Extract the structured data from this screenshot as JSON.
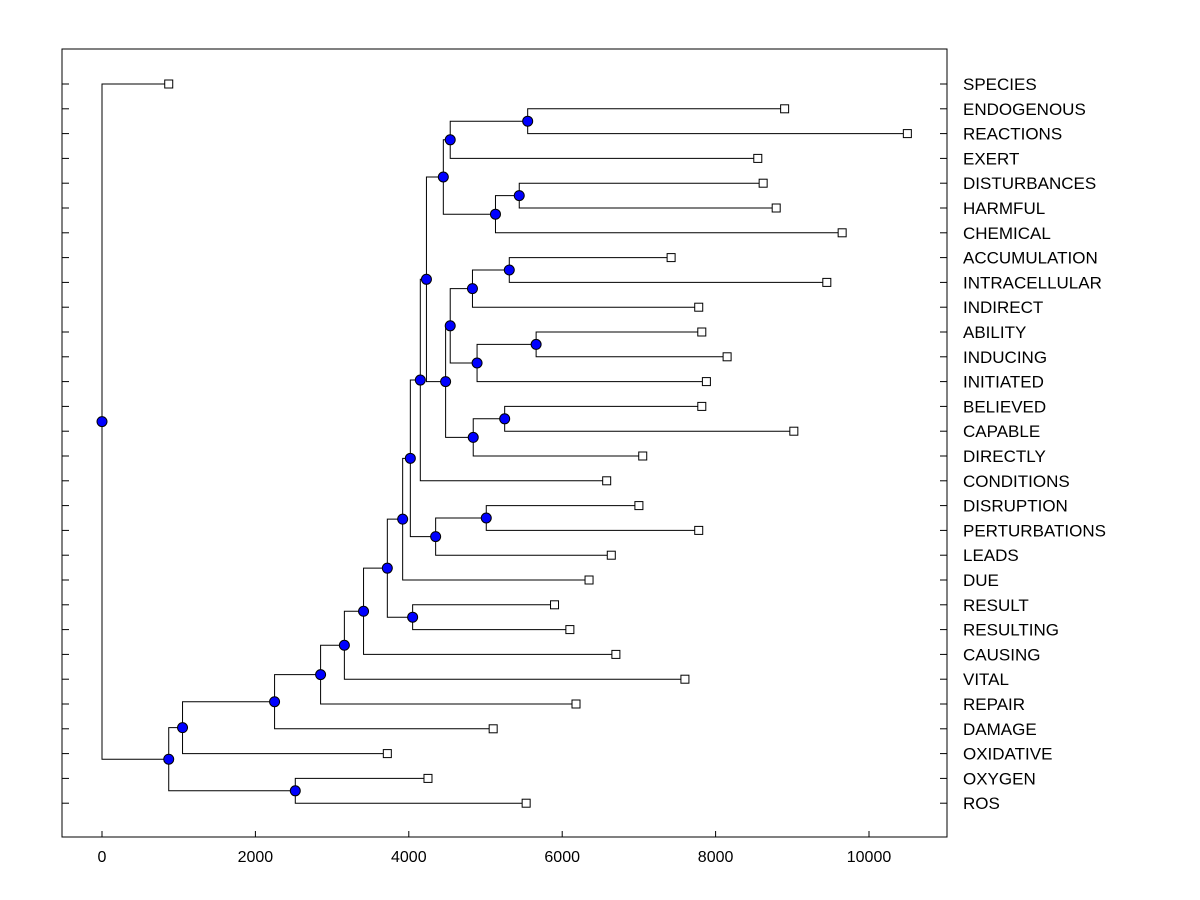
{
  "chart_data": {
    "type": "dendrogram",
    "orientation": "horizontal",
    "xlim": [
      -500,
      11000
    ],
    "xticks": [
      0,
      2000,
      4000,
      6000,
      8000,
      10000
    ],
    "xtick_labels": [
      "0",
      "2000",
      "4000",
      "6000",
      "8000",
      "10000"
    ],
    "colors": {
      "node": "#0000ff",
      "line": "#000000",
      "leaf_fill": "#ffffff"
    },
    "leaves": [
      {
        "label": "SPECIES",
        "x": 870
      },
      {
        "label": "ENDOGENOUS",
        "x": 8900
      },
      {
        "label": "REACTIONS",
        "x": 10500
      },
      {
        "label": "EXERT",
        "x": 8550
      },
      {
        "label": "DISTURBANCES",
        "x": 8620
      },
      {
        "label": "HARMFUL",
        "x": 8790
      },
      {
        "label": "CHEMICAL",
        "x": 9650
      },
      {
        "label": "ACCUMULATION",
        "x": 7420
      },
      {
        "label": "INTRACELLULAR",
        "x": 9450
      },
      {
        "label": "INDIRECT",
        "x": 7780
      },
      {
        "label": "ABILITY",
        "x": 7820
      },
      {
        "label": "INDUCING",
        "x": 8150
      },
      {
        "label": "INITIATED",
        "x": 7880
      },
      {
        "label": "BELIEVED",
        "x": 7820
      },
      {
        "label": "CAPABLE",
        "x": 9020
      },
      {
        "label": "DIRECTLY",
        "x": 7050
      },
      {
        "label": "CONDITIONS",
        "x": 6580
      },
      {
        "label": "DISRUPTION",
        "x": 7000
      },
      {
        "label": "PERTURBATIONS",
        "x": 7780
      },
      {
        "label": "LEADS",
        "x": 6640
      },
      {
        "label": "DUE",
        "x": 6350
      },
      {
        "label": "RESULT",
        "x": 5900
      },
      {
        "label": "RESULTING",
        "x": 6100
      },
      {
        "label": "CAUSING",
        "x": 6700
      },
      {
        "label": "VITAL",
        "x": 7600
      },
      {
        "label": "REPAIR",
        "x": 6180
      },
      {
        "label": "DAMAGE",
        "x": 5100
      },
      {
        "label": "OXIDATIVE",
        "x": 3720
      },
      {
        "label": "OXYGEN",
        "x": 4250
      },
      {
        "label": "ROS",
        "x": 5530
      }
    ],
    "merges": [
      {
        "id": "ENDO_REAC",
        "x": 5550,
        "children": [
          "L1",
          "L2"
        ]
      },
      {
        "id": "ERE",
        "x": 4540,
        "children": [
          "ENDO_REAC",
          "L3"
        ]
      },
      {
        "id": "DH",
        "x": 5440,
        "children": [
          "L4",
          "L5"
        ]
      },
      {
        "id": "DHC",
        "x": 5130,
        "children": [
          "DH",
          "L6"
        ]
      },
      {
        "id": "G1",
        "x": 4450,
        "children": [
          "ERE",
          "DHC"
        ]
      },
      {
        "id": "AI",
        "x": 5310,
        "children": [
          "L7",
          "L8"
        ]
      },
      {
        "id": "AII",
        "x": 4830,
        "children": [
          "AI",
          "L9"
        ]
      },
      {
        "id": "AIN",
        "x": 5660,
        "children": [
          "L10",
          "L11"
        ]
      },
      {
        "id": "AINI",
        "x": 4890,
        "children": [
          "AIN",
          "L12"
        ]
      },
      {
        "id": "G2",
        "x": 4540,
        "children": [
          "AII",
          "AINI"
        ]
      },
      {
        "id": "BC",
        "x": 5250,
        "children": [
          "L13",
          "L14"
        ]
      },
      {
        "id": "BCD",
        "x": 4840,
        "children": [
          "BC",
          "L15"
        ]
      },
      {
        "id": "G2b",
        "x": 4480,
        "children": [
          "G2",
          "BCD"
        ]
      },
      {
        "id": "G12",
        "x": 4230,
        "children": [
          "G1",
          "G2b"
        ]
      },
      {
        "id": "G12C",
        "x": 4150,
        "children": [
          "G12",
          "L16"
        ]
      },
      {
        "id": "DP",
        "x": 5010,
        "children": [
          "L17",
          "L18"
        ]
      },
      {
        "id": "DPL",
        "x": 4350,
        "children": [
          "DP",
          "L19"
        ]
      },
      {
        "id": "G3",
        "x": 4020,
        "children": [
          "G12C",
          "DPL"
        ]
      },
      {
        "id": "G3D",
        "x": 3920,
        "children": [
          "G3",
          "L20"
        ]
      },
      {
        "id": "RR",
        "x": 4050,
        "children": [
          "L21",
          "L22"
        ]
      },
      {
        "id": "G4",
        "x": 3720,
        "children": [
          "G3D",
          "RR"
        ]
      },
      {
        "id": "G4C",
        "x": 3410,
        "children": [
          "G4",
          "L23"
        ]
      },
      {
        "id": "G4V",
        "x": 3160,
        "children": [
          "G4C",
          "L24"
        ]
      },
      {
        "id": "G4R",
        "x": 2850,
        "children": [
          "G4V",
          "L25"
        ]
      },
      {
        "id": "G4D",
        "x": 2250,
        "children": [
          "G4R",
          "L26"
        ]
      },
      {
        "id": "G4O",
        "x": 1050,
        "children": [
          "G4D",
          "L27"
        ]
      },
      {
        "id": "OR",
        "x": 2520,
        "children": [
          "L28",
          "L29"
        ]
      },
      {
        "id": "G5",
        "x": 870,
        "children": [
          "G4O",
          "OR"
        ]
      },
      {
        "id": "ROOT",
        "x": 0,
        "children": [
          "L0",
          "G5"
        ]
      }
    ]
  }
}
